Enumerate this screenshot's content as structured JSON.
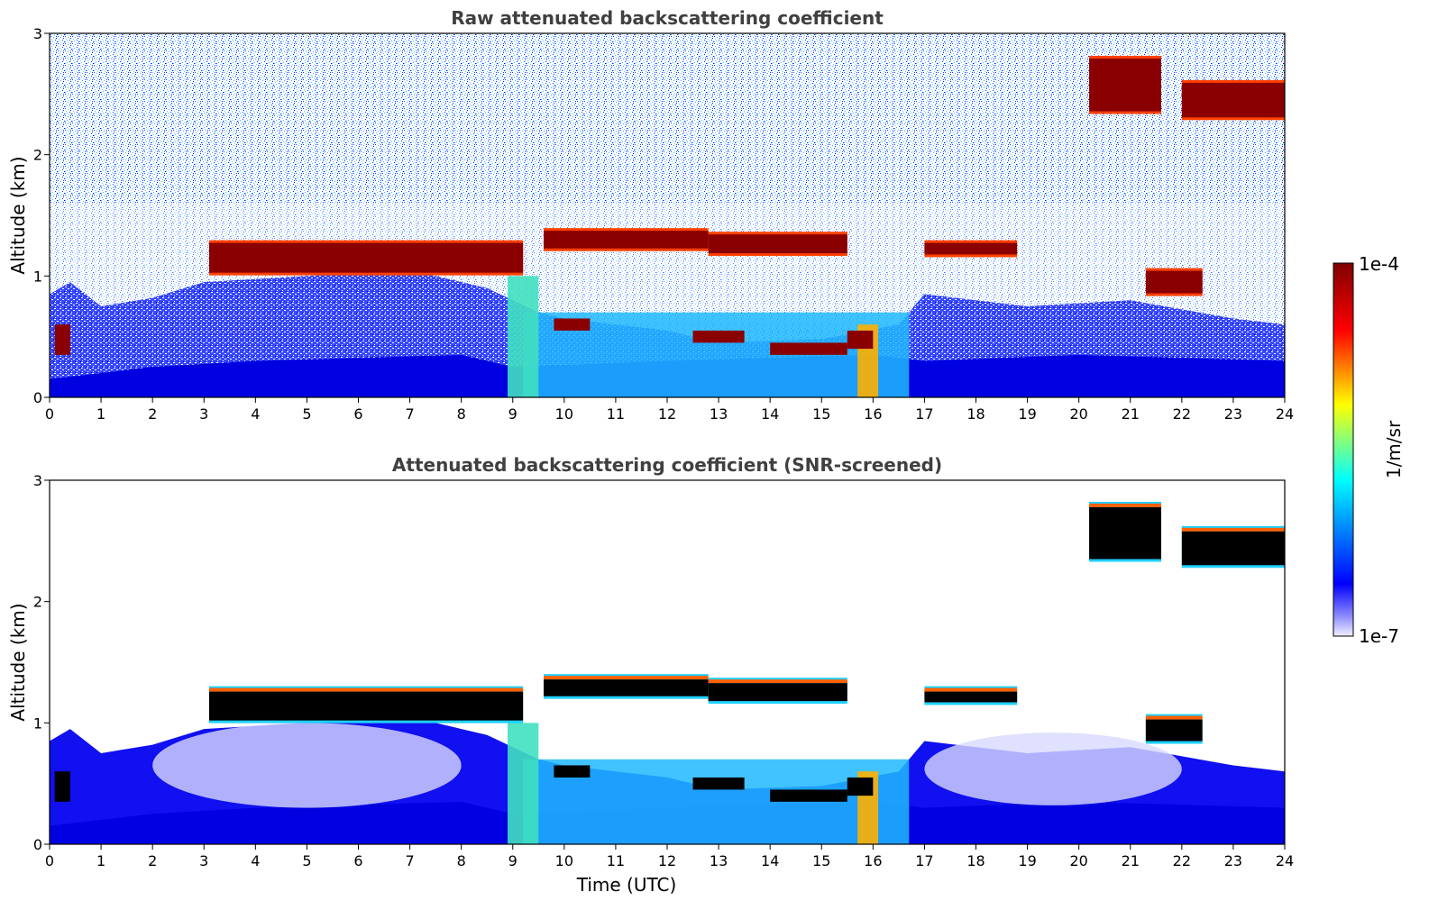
{
  "chart_data": [
    {
      "type": "heatmap",
      "title": "Raw attenuated backscattering coefficient",
      "xlabel": "",
      "ylabel": "Altitude (km)",
      "xlim": [
        0,
        24
      ],
      "ylim": [
        0,
        3
      ],
      "xticks": [
        "0",
        "1",
        "2",
        "3",
        "4",
        "5",
        "6",
        "7",
        "8",
        "9",
        "10",
        "11",
        "12",
        "13",
        "14",
        "15",
        "16",
        "17",
        "18",
        "19",
        "20",
        "21",
        "22",
        "23",
        "24"
      ],
      "yticks": [
        "0",
        "1",
        "2",
        "3"
      ],
      "screened": false,
      "layers": [
        {
          "start": 3.1,
          "end": 9.2,
          "base": 1.02,
          "top": 1.28
        },
        {
          "start": 9.6,
          "end": 12.8,
          "base": 1.22,
          "top": 1.38
        },
        {
          "start": 12.8,
          "end": 15.5,
          "base": 1.18,
          "top": 1.35
        },
        {
          "start": 17.0,
          "end": 18.8,
          "base": 1.17,
          "top": 1.28
        },
        {
          "start": 20.2,
          "end": 21.6,
          "base": 2.35,
          "top": 2.8
        },
        {
          "start": 22.0,
          "end": 24.0,
          "base": 2.3,
          "top": 2.6
        },
        {
          "start": 21.3,
          "end": 22.4,
          "base": 0.85,
          "top": 1.05
        }
      ]
    },
    {
      "type": "heatmap",
      "title": "Attenuated backscattering coefficient (SNR-screened)",
      "xlabel": "Time (UTC)",
      "ylabel": "Altitude (km)",
      "xlim": [
        0,
        24
      ],
      "ylim": [
        0,
        3
      ],
      "xticks": [
        "0",
        "1",
        "2",
        "3",
        "4",
        "5",
        "6",
        "7",
        "8",
        "9",
        "10",
        "11",
        "12",
        "13",
        "14",
        "15",
        "16",
        "17",
        "18",
        "19",
        "20",
        "21",
        "22",
        "23",
        "24"
      ],
      "yticks": [
        "0",
        "1",
        "2",
        "3"
      ],
      "screened": true,
      "layers": [
        {
          "start": 3.1,
          "end": 9.2,
          "base": 1.02,
          "top": 1.28
        },
        {
          "start": 9.6,
          "end": 12.8,
          "base": 1.22,
          "top": 1.38
        },
        {
          "start": 12.8,
          "end": 15.5,
          "base": 1.18,
          "top": 1.35
        },
        {
          "start": 17.0,
          "end": 18.8,
          "base": 1.17,
          "top": 1.28
        },
        {
          "start": 20.2,
          "end": 21.6,
          "base": 2.35,
          "top": 2.8
        },
        {
          "start": 22.0,
          "end": 24.0,
          "base": 2.3,
          "top": 2.6
        },
        {
          "start": 21.3,
          "end": 22.4,
          "base": 0.85,
          "top": 1.05
        }
      ]
    }
  ],
  "colorbar": {
    "max_label": "1e-4",
    "min_label": "1e-7",
    "unit_label": "1/m/sr",
    "colormap": "jet",
    "colors": [
      "#f0f0ff",
      "#0000ff",
      "#00ffff",
      "#ffff00",
      "#ff0000",
      "#800000"
    ]
  }
}
